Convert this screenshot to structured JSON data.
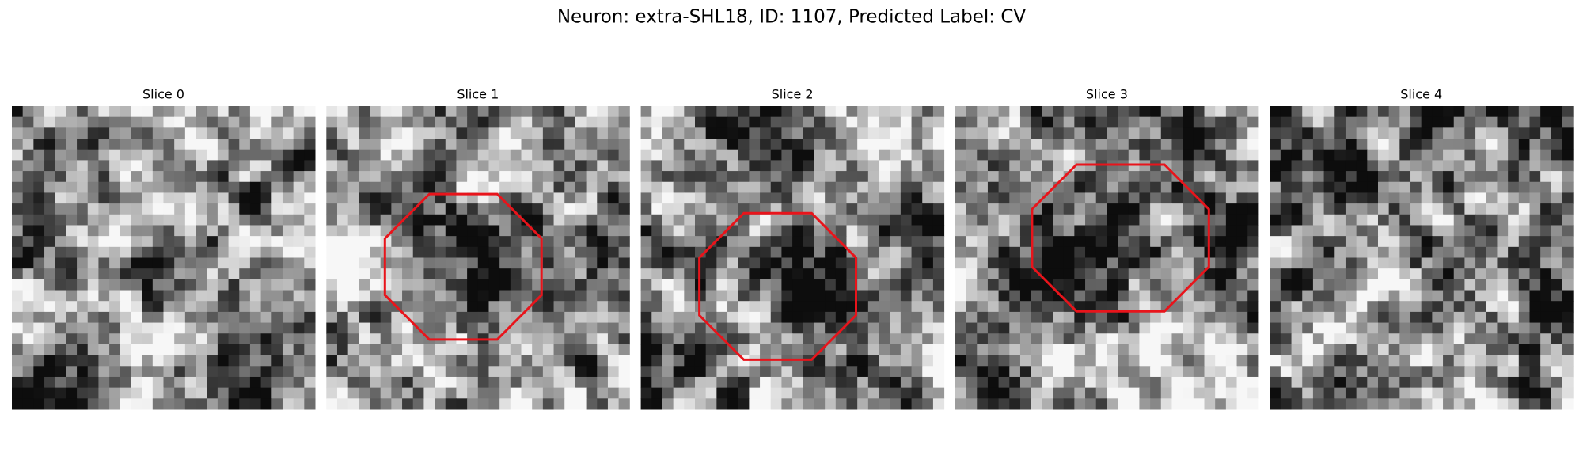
{
  "title": "Neuron: extra-SHL18, ID: 1107, Predicted Label: CV",
  "panels": [
    {
      "title": "Slice 0"
    },
    {
      "title": "Slice 1"
    },
    {
      "title": "Slice 2"
    },
    {
      "title": "Slice 3"
    },
    {
      "title": "Slice 4"
    }
  ]
}
